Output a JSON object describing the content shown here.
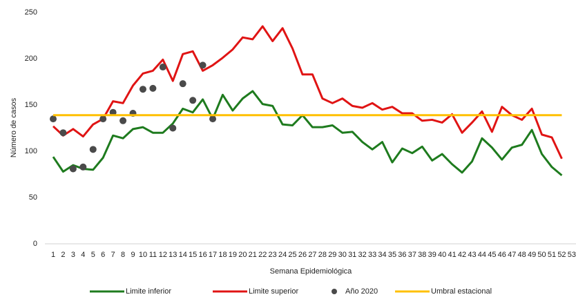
{
  "chart_data": {
    "type": "line",
    "y_label": "Número de casos",
    "x_label": "Semana Epidemiológica",
    "categories": [
      "1",
      "2",
      "3",
      "4",
      "5",
      "6",
      "7",
      "8",
      "9",
      "10",
      "11",
      "12",
      "13",
      "14",
      "15",
      "16",
      "17",
      "18",
      "19",
      "20",
      "21",
      "22",
      "23",
      "24",
      "25",
      "26",
      "27",
      "28",
      "29",
      "30",
      "31",
      "32",
      "33",
      "34",
      "35",
      "36",
      "37",
      "38",
      "39",
      "40",
      "41",
      "42",
      "43",
      "44",
      "45",
      "46",
      "47",
      "48",
      "49",
      "50",
      "51",
      "52",
      "53"
    ],
    "ylim": [
      0,
      250
    ],
    "yticks": [
      0,
      50,
      100,
      150,
      200,
      250
    ],
    "grid": false,
    "legend": "bottom",
    "series": [
      {
        "name": "Limite inferior",
        "color": "#1e7b1e",
        "mode": "lines",
        "values": [
          94,
          78,
          85,
          81,
          80,
          93,
          117,
          114,
          124,
          126,
          120,
          120,
          130,
          146,
          142,
          156,
          135,
          161,
          144,
          157,
          165,
          151,
          149,
          129,
          128,
          139,
          126,
          126,
          128,
          120,
          121,
          110,
          102,
          110,
          88,
          103,
          98,
          105,
          90,
          97,
          86,
          77,
          89,
          114,
          104,
          91,
          104,
          107,
          123,
          97,
          83,
          74,
          null
        ]
      },
      {
        "name": "Limite superior",
        "color": "#e01414",
        "mode": "lines",
        "values": [
          127,
          117,
          124,
          116,
          129,
          135,
          154,
          152,
          171,
          184,
          187,
          199,
          176,
          205,
          208,
          187,
          193,
          201,
          210,
          223,
          221,
          235,
          219,
          233,
          211,
          183,
          183,
          157,
          152,
          157,
          149,
          147,
          152,
          145,
          148,
          141,
          141,
          133,
          134,
          131,
          140,
          120,
          131,
          143,
          121,
          148,
          139,
          134,
          146,
          118,
          115,
          92,
          null
        ]
      },
      {
        "name": "Año 2020",
        "color": "#4a4a4a",
        "mode": "markers",
        "values": [
          135,
          120,
          81,
          83,
          102,
          135,
          142,
          133,
          141,
          167,
          168,
          191,
          125,
          173,
          155,
          193,
          135,
          null,
          null,
          null,
          null,
          null,
          null,
          null,
          null,
          null,
          null,
          null,
          null,
          null,
          null,
          null,
          null,
          null,
          null,
          null,
          null,
          null,
          null,
          null,
          null,
          null,
          null,
          null,
          null,
          null,
          null,
          null,
          null,
          null,
          null,
          null,
          null
        ]
      },
      {
        "name": "Umbral estacional",
        "color": "#ffc000",
        "mode": "lines",
        "values": [
          139,
          139,
          139,
          139,
          139,
          139,
          139,
          139,
          139,
          139,
          139,
          139,
          139,
          139,
          139,
          139,
          139,
          139,
          139,
          139,
          139,
          139,
          139,
          139,
          139,
          139,
          139,
          139,
          139,
          139,
          139,
          139,
          139,
          139,
          139,
          139,
          139,
          139,
          139,
          139,
          139,
          139,
          139,
          139,
          139,
          139,
          139,
          139,
          139,
          139,
          139,
          139,
          null
        ]
      }
    ]
  }
}
